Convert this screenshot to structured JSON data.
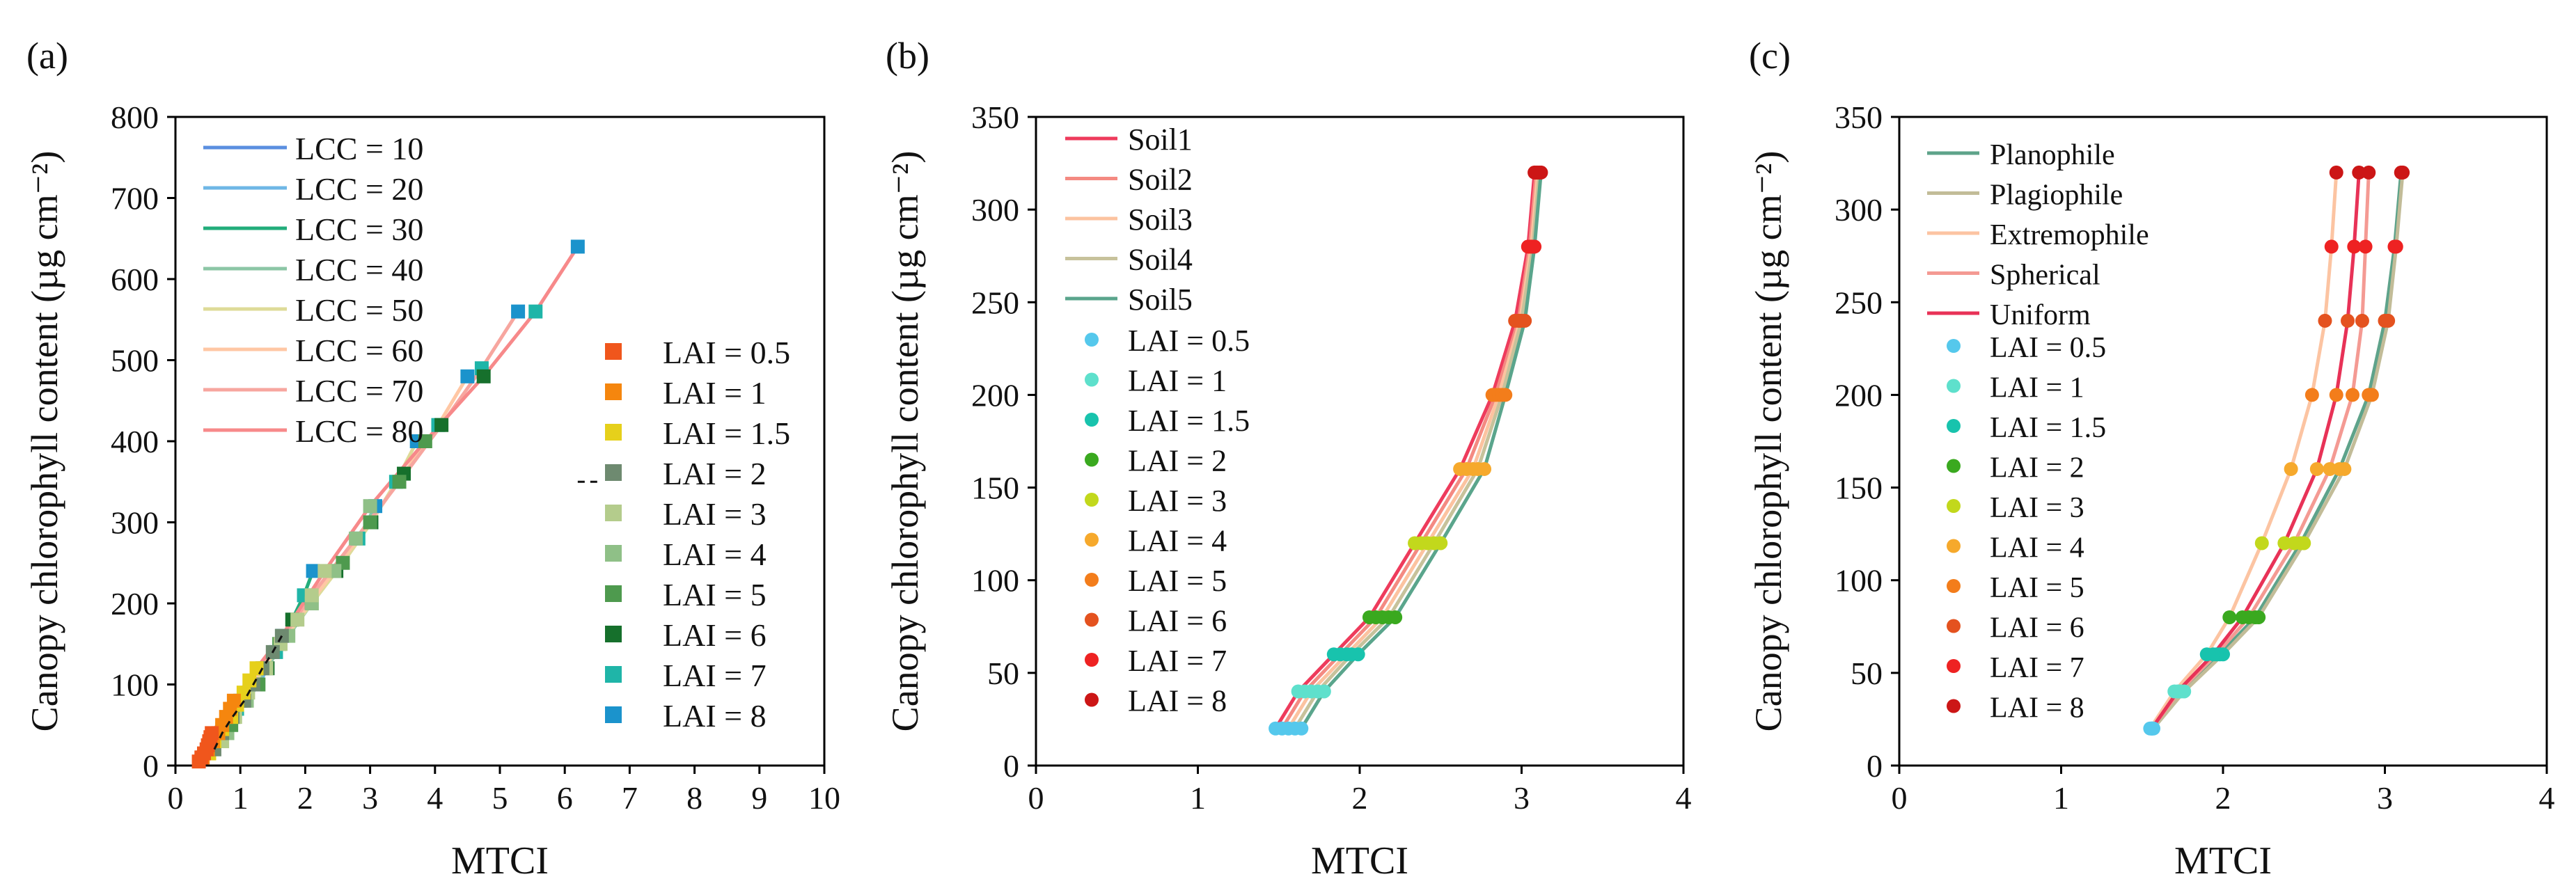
{
  "chart_data": [
    {
      "panel": "(a)",
      "type": "line",
      "xlabel": "MTCI",
      "ylabel": "Canopy chlorophyll content (µg cm⁻²)",
      "xlim": [
        0,
        10
      ],
      "ylim": [
        0,
        800
      ],
      "xticks": [
        "0",
        "1",
        "2",
        "3",
        "4",
        "5",
        "6",
        "7",
        "8",
        "9",
        "10"
      ],
      "yticks": [
        "0",
        "100",
        "200",
        "300",
        "400",
        "500",
        "600",
        "700",
        "800"
      ],
      "lai_values": [
        0.5,
        1,
        1.5,
        2,
        3,
        4,
        5,
        6,
        7,
        8
      ],
      "series": [
        {
          "name": "LCC = 10",
          "color": "#5b8fe0",
          "x": [
            0.36,
            0.42,
            0.52,
            0.6,
            0.72,
            0.8,
            0.86,
            0.9,
            0.95,
            1.0
          ],
          "y": [
            5,
            10,
            15,
            20,
            30,
            40,
            50,
            60,
            70,
            80
          ]
        },
        {
          "name": "LCC = 20",
          "color": "#6fb7e6",
          "x": [
            0.4,
            0.5,
            0.6,
            0.72,
            0.92,
            1.1,
            1.28,
            1.42,
            1.55,
            1.65
          ],
          "y": [
            10,
            20,
            30,
            40,
            60,
            80,
            100,
            120,
            140,
            160
          ]
        },
        {
          "name": "LCC = 30",
          "color": "#22ad7b",
          "x": [
            0.44,
            0.58,
            0.72,
            0.88,
            1.12,
            1.38,
            1.6,
            1.8,
            1.98,
            2.12
          ],
          "y": [
            15,
            30,
            45,
            60,
            90,
            120,
            150,
            180,
            210,
            240
          ]
        },
        {
          "name": "LCC = 40",
          "color": "#8cc6a6",
          "x": [
            0.48,
            0.66,
            0.86,
            1.06,
            1.4,
            1.74,
            2.1,
            2.48,
            2.82,
            3.08
          ],
          "y": [
            20,
            40,
            60,
            80,
            120,
            160,
            200,
            240,
            280,
            320
          ]
        },
        {
          "name": "LCC = 50",
          "color": "#dedb98",
          "x": [
            0.5,
            0.72,
            0.95,
            1.2,
            1.62,
            2.1,
            2.58,
            3.02,
            3.4,
            3.72
          ],
          "y": [
            25,
            50,
            75,
            100,
            150,
            200,
            250,
            300,
            350,
            400
          ]
        },
        {
          "name": "LCC = 60",
          "color": "#ffc7a4",
          "x": [
            0.52,
            0.78,
            1.05,
            1.34,
            1.88,
            2.45,
            3.0,
            3.52,
            4.05,
            4.5
          ],
          "y": [
            30,
            60,
            90,
            120,
            180,
            240,
            300,
            360,
            420,
            480
          ]
        },
        {
          "name": "LCC = 70",
          "color": "#f7a69f",
          "x": [
            0.54,
            0.84,
            1.14,
            1.5,
            2.1,
            2.78,
            3.45,
            4.1,
            4.72,
            5.28
          ],
          "y": [
            35,
            70,
            105,
            140,
            210,
            280,
            350,
            420,
            490,
            560
          ]
        },
        {
          "name": "LCC = 80",
          "color": "#f7898a",
          "x": [
            0.56,
            0.9,
            1.25,
            1.64,
            2.3,
            3.0,
            3.85,
            4.75,
            5.55,
            6.2
          ],
          "y": [
            40,
            80,
            120,
            160,
            240,
            320,
            400,
            480,
            560,
            640
          ]
        }
      ],
      "marker_legend": [
        {
          "label": "LAI = 0.5",
          "color": "#f0561c"
        },
        {
          "label": "LAI = 1",
          "color": "#f5860e"
        },
        {
          "label": "LAI = 1.5",
          "color": "#e6d01b"
        },
        {
          "label": "LAI = 2",
          "color": "#6e8a70"
        },
        {
          "label": "LAI = 3",
          "color": "#b4cc8c"
        },
        {
          "label": "LAI = 4",
          "color": "#8fc087"
        },
        {
          "label": "LAI = 5",
          "color": "#4e9a4e"
        },
        {
          "label": "LAI = 6",
          "color": "#16702c"
        },
        {
          "label": "LAI = 7",
          "color": "#1fb5a8"
        },
        {
          "label": "LAI = 8",
          "color": "#1b93cc"
        }
      ],
      "annotation": {
        "type": "dashed-line",
        "series_lai": 2
      }
    },
    {
      "panel": "(b)",
      "type": "line",
      "xlabel": "MTCI",
      "ylabel": "Canopy chlorophyll content (µg cm⁻²)",
      "xlim": [
        0,
        4
      ],
      "ylim": [
        0,
        350
      ],
      "xticks": [
        "0",
        "1",
        "2",
        "3",
        "4"
      ],
      "yticks": [
        "0",
        "50",
        "100",
        "150",
        "200",
        "250",
        "300",
        "350"
      ],
      "y_levels": [
        20,
        40,
        60,
        80,
        120,
        160,
        200,
        240,
        280,
        320
      ],
      "series": [
        {
          "name": "Soil1",
          "color": "#ee3b5c",
          "x": [
            1.48,
            1.62,
            1.84,
            2.06,
            2.34,
            2.62,
            2.82,
            2.96,
            3.04,
            3.08
          ]
        },
        {
          "name": "Soil2",
          "color": "#f48a82",
          "x": [
            1.52,
            1.66,
            1.88,
            2.1,
            2.38,
            2.66,
            2.84,
            2.98,
            3.05,
            3.09
          ]
        },
        {
          "name": "Soil3",
          "color": "#fcc3a0",
          "x": [
            1.56,
            1.7,
            1.92,
            2.14,
            2.42,
            2.7,
            2.86,
            2.99,
            3.06,
            3.1
          ]
        },
        {
          "name": "Soil4",
          "color": "#c7c29b",
          "x": [
            1.6,
            1.74,
            1.95,
            2.18,
            2.46,
            2.73,
            2.88,
            3.0,
            3.07,
            3.11
          ]
        },
        {
          "name": "Soil5",
          "color": "#5aa58c",
          "x": [
            1.64,
            1.78,
            1.99,
            2.22,
            2.5,
            2.77,
            2.9,
            3.02,
            3.08,
            3.12
          ]
        }
      ],
      "marker_legend": [
        {
          "label": "LAI = 0.5",
          "color": "#55c8ec"
        },
        {
          "label": "LAI = 1",
          "color": "#5ee0cc"
        },
        {
          "label": "LAI = 1.5",
          "color": "#18c3ad"
        },
        {
          "label": "LAI = 2",
          "color": "#3aa91f"
        },
        {
          "label": "LAI = 3",
          "color": "#c2d81c"
        },
        {
          "label": "LAI = 4",
          "color": "#f6a92c"
        },
        {
          "label": "LAI = 5",
          "color": "#f37d1b"
        },
        {
          "label": "LAI = 6",
          "color": "#e4521f"
        },
        {
          "label": "LAI = 7",
          "color": "#ee2222"
        },
        {
          "label": "LAI = 8",
          "color": "#cc1616"
        }
      ]
    },
    {
      "panel": "(c)",
      "type": "line",
      "xlabel": "MTCI",
      "ylabel": "Canopy chlorophyll content (µg cm⁻²)",
      "xlim": [
        0,
        4
      ],
      "ylim": [
        0,
        350
      ],
      "xticks": [
        "0",
        "1",
        "2",
        "3",
        "4"
      ],
      "yticks": [
        "0",
        "50",
        "100",
        "150",
        "200",
        "250",
        "300",
        "350"
      ],
      "y_levels": [
        20,
        40,
        60,
        80,
        120,
        160,
        200,
        240,
        280,
        320
      ],
      "series": [
        {
          "name": "Planophile",
          "color": "#5ea38a",
          "x": [
            1.56,
            1.74,
            1.98,
            2.2,
            2.48,
            2.72,
            2.9,
            3.0,
            3.06,
            3.1
          ]
        },
        {
          "name": "Plagiophile",
          "color": "#c2bc98",
          "x": [
            1.57,
            1.76,
            2.0,
            2.22,
            2.5,
            2.75,
            2.92,
            3.02,
            3.07,
            3.11
          ]
        },
        {
          "name": "Extremophile",
          "color": "#fcc4a2",
          "x": [
            1.55,
            1.7,
            1.9,
            2.04,
            2.24,
            2.42,
            2.55,
            2.63,
            2.67,
            2.7
          ]
        },
        {
          "name": "Spherical",
          "color": "#f49a93",
          "x": [
            1.56,
            1.73,
            1.96,
            2.16,
            2.44,
            2.66,
            2.8,
            2.86,
            2.88,
            2.9
          ]
        },
        {
          "name": "Uniform",
          "color": "#e83257",
          "x": [
            1.56,
            1.72,
            1.94,
            2.12,
            2.38,
            2.58,
            2.7,
            2.77,
            2.81,
            2.84
          ]
        }
      ],
      "marker_legend": [
        {
          "label": "LAI = 0.5",
          "color": "#55c8ec"
        },
        {
          "label": "LAI = 1",
          "color": "#5ee0cc"
        },
        {
          "label": "LAI = 1.5",
          "color": "#18c3ad"
        },
        {
          "label": "LAI = 2",
          "color": "#3aa91f"
        },
        {
          "label": "LAI = 3",
          "color": "#c2d81c"
        },
        {
          "label": "LAI = 4",
          "color": "#f6a92c"
        },
        {
          "label": "LAI = 5",
          "color": "#f37d1b"
        },
        {
          "label": "LAI = 6",
          "color": "#e4521f"
        },
        {
          "label": "LAI = 7",
          "color": "#ee2222"
        },
        {
          "label": "LAI = 8",
          "color": "#cc1616"
        }
      ]
    }
  ]
}
